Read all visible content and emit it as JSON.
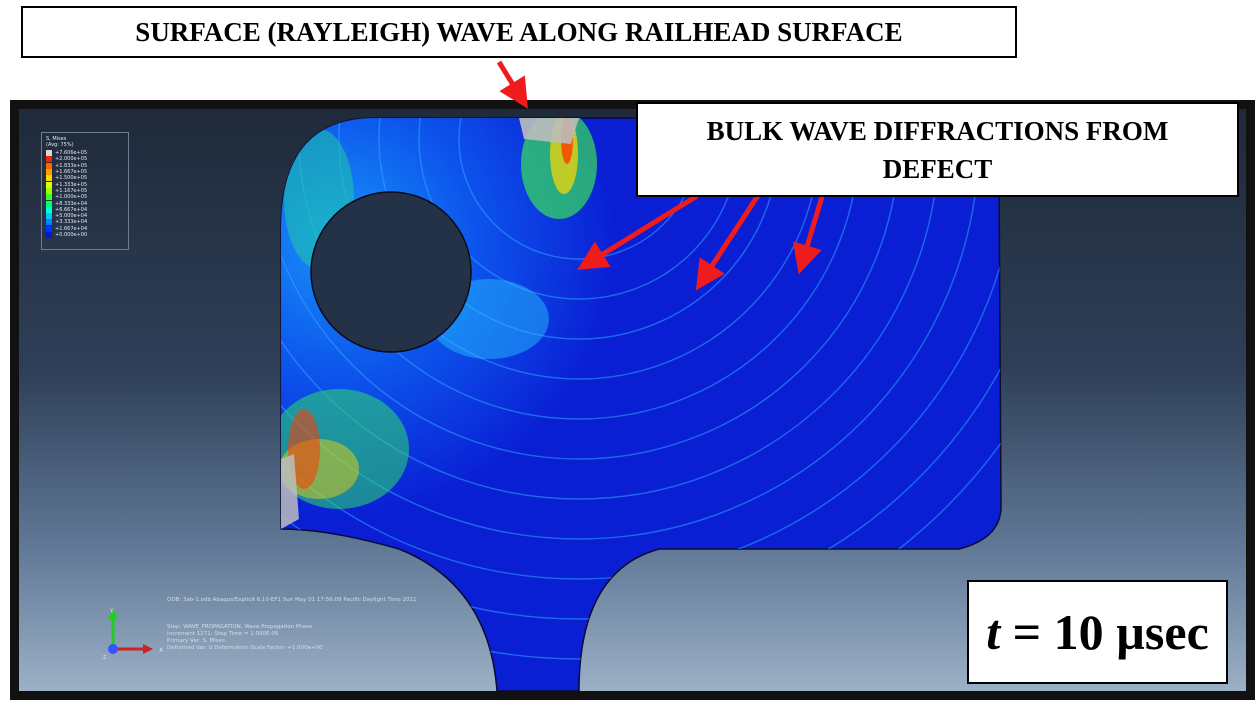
{
  "callouts": {
    "surface_wave": "SURFACE (RAYLEIGH) WAVE ALONG RAILHEAD SURFACE",
    "bulk_wave_line1": "BULK WAVE DIFFRACTIONS FROM",
    "bulk_wave_line2": "DEFECT",
    "time_symbol": "t",
    "time_value": "= 10 µsec"
  },
  "legend": {
    "title": "S, Mises",
    "subtitle": "(Avg: 75%)",
    "entries": [
      {
        "value": "+7.606e+05",
        "color": "#d9d9d9"
      },
      {
        "value": "+2.000e+05",
        "color": "#ff2000"
      },
      {
        "value": "+1.833e+05",
        "color": "#ff6600"
      },
      {
        "value": "+1.667e+05",
        "color": "#ffa000"
      },
      {
        "value": "+1.500e+05",
        "color": "#ffd800"
      },
      {
        "value": "+1.333e+05",
        "color": "#e6ff00"
      },
      {
        "value": "+1.167e+05",
        "color": "#9dff00"
      },
      {
        "value": "+1.000e+05",
        "color": "#3cff1a"
      },
      {
        "value": "+8.333e+04",
        "color": "#00ff73"
      },
      {
        "value": "+6.667e+04",
        "color": "#00ffd0"
      },
      {
        "value": "+5.000e+04",
        "color": "#00c8ff"
      },
      {
        "value": "+3.333e+04",
        "color": "#0080ff"
      },
      {
        "value": "+1.667e+04",
        "color": "#0033ff"
      },
      {
        "value": "+0.000e+00",
        "color": "#0018d8"
      }
    ]
  },
  "viewport_info": {
    "odb_line": "ODB: 3ab-1.odb    Abaqus/Explicit 6.10-EF1    Sun May 01 17:56:08 Pacific Daylight Time 2011",
    "step_line": "Step: WAVE_PROPAGATION, Wave Propagation Phase",
    "increment_line": "Increment      1271: Step Time =    1.000E-05",
    "primary_line": "Primary Var: S, Mises",
    "deformed_line": "Deformed Var: U   Deformation Scale Factor: +1.000e+00"
  },
  "triad": {
    "y_label": "Y",
    "x_label": "X",
    "z_label": "Z"
  },
  "colors": {
    "rail_blue": "#0a1fd4",
    "arrow_red": "#ee1c1c",
    "background_top": "#1f2a3a",
    "background_bottom": "#9cb0c6"
  }
}
